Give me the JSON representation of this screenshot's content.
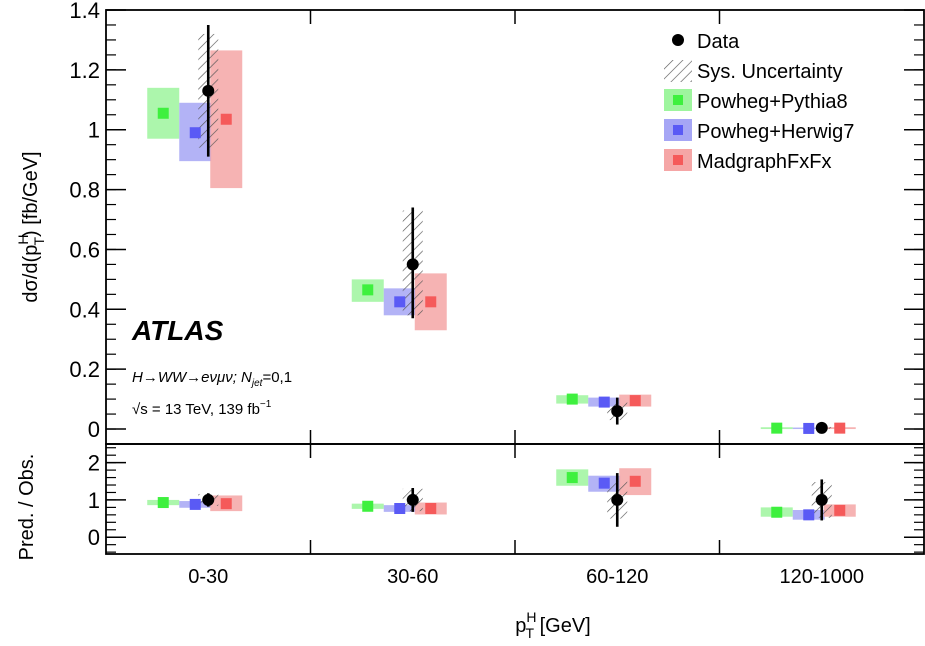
{
  "chart_data": [
    {
      "type": "scatter",
      "panel": "main",
      "categories": [
        "0-30",
        "30-60",
        "60-120",
        "120-1000"
      ],
      "ylabel": "dσ/d(p_T^H) [fb/GeV]",
      "ylim": [
        -0.05,
        1.4
      ],
      "yticks": [
        "0",
        "0.2",
        "0.4",
        "0.6",
        "0.8",
        "1",
        "1.2",
        "1.4"
      ],
      "data": {
        "name": "Data",
        "values": [
          1.13,
          0.55,
          0.06,
          0.004
        ],
        "err_up": [
          0.22,
          0.19,
          0.045,
          0.004
        ],
        "err_down": [
          0.22,
          0.18,
          0.045,
          0.004
        ]
      },
      "sys": {
        "name": "Sys. Uncertainty",
        "up": [
          0.19,
          0.18,
          0.03,
          0.003
        ],
        "down": [
          0.19,
          0.17,
          0.03,
          0.003
        ]
      },
      "series": [
        {
          "name": "Powheg+Pythia8",
          "color": "#7cf07c",
          "values": [
            1.055,
            0.465,
            0.1,
            0.003
          ],
          "band": [
            [
              0.97,
              1.14
            ],
            [
              0.425,
              0.5
            ],
            [
              0.085,
              0.113
            ],
            [
              0.0,
              0.006
            ]
          ]
        },
        {
          "name": "Powheg+Herwig7",
          "color": "#7c7cf0",
          "values": [
            0.99,
            0.425,
            0.09,
            0.002
          ],
          "band": [
            [
              0.895,
              1.09
            ],
            [
              0.38,
              0.47
            ],
            [
              0.075,
              0.105
            ],
            [
              0.0,
              0.005
            ]
          ]
        },
        {
          "name": "MadgraphFxFx",
          "color": "#f07c7c",
          "values": [
            1.035,
            0.425,
            0.095,
            0.003
          ],
          "band": [
            [
              0.805,
              1.265
            ],
            [
              0.33,
              0.52
            ],
            [
              0.075,
              0.115
            ],
            [
              0.0,
              0.006
            ]
          ]
        }
      ],
      "legend_position": "top-right"
    },
    {
      "type": "scatter",
      "panel": "ratio",
      "categories": [
        "0-30",
        "30-60",
        "60-120",
        "120-1000"
      ],
      "ylabel": "Pred. / Obs.",
      "xlabel": "p_T^H [GeV]",
      "ylim": [
        -0.45,
        2.5
      ],
      "yticks": [
        "0",
        "1",
        "2"
      ],
      "data": {
        "values": [
          1,
          1,
          1,
          1
        ],
        "err_up": [
          0.18,
          0.32,
          0.72,
          0.55
        ],
        "err_down": [
          0.18,
          0.32,
          0.72,
          0.55
        ]
      },
      "sys": {
        "up": [
          0.16,
          0.3,
          0.5,
          0.48
        ],
        "down": [
          0.16,
          0.3,
          0.5,
          0.48
        ]
      },
      "series": [
        {
          "name": "Powheg+Pythia8",
          "values": [
            0.93,
            0.83,
            1.6,
            0.67
          ],
          "band": [
            [
              0.86,
              1.0
            ],
            [
              0.76,
              0.9
            ],
            [
              1.38,
              1.82
            ],
            [
              0.55,
              0.8
            ]
          ]
        },
        {
          "name": "Powheg+Herwig7",
          "values": [
            0.88,
            0.77,
            1.45,
            0.6
          ],
          "band": [
            [
              0.79,
              0.97
            ],
            [
              0.68,
              0.86
            ],
            [
              1.22,
              1.65
            ],
            [
              0.47,
              0.73
            ]
          ]
        },
        {
          "name": "MadgraphFxFx",
          "values": [
            0.9,
            0.77,
            1.5,
            0.72
          ],
          "band": [
            [
              0.7,
              1.12
            ],
            [
              0.61,
              0.93
            ],
            [
              1.13,
              1.85
            ],
            [
              0.55,
              0.88
            ]
          ]
        }
      ]
    }
  ],
  "experiment": "ATLAS",
  "process": "H→WW→eνμν; N",
  "process_sub": "jet",
  "process_suffix": "=0,1",
  "energy": "√s = 13 TeV, 139 fb",
  "energy_sup": "−1"
}
